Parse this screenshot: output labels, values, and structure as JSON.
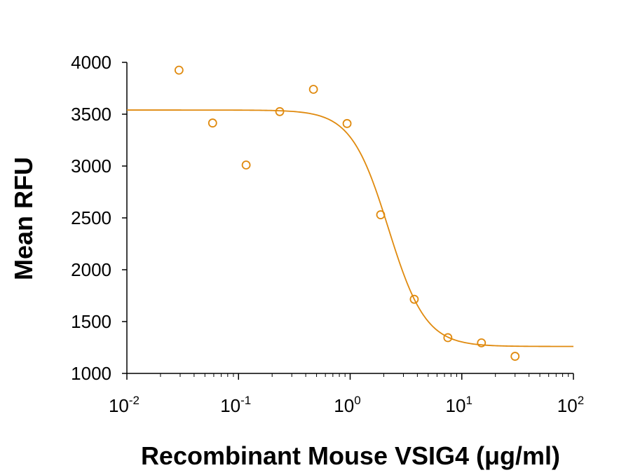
{
  "chart_data": {
    "type": "scatter",
    "xlabel": "Recombinant Mouse VSIG4 (μg/ml)",
    "ylabel": "Mean RFU",
    "xscale": "log",
    "xlim": [
      0.01,
      100
    ],
    "ylim": [
      1000,
      4000
    ],
    "yticks": [
      "1000",
      "1500",
      "2000",
      "2500",
      "3000",
      "3500",
      "4000"
    ],
    "xticks": [
      {
        "base": "10",
        "exp": "-2",
        "value": 0.01
      },
      {
        "base": "10",
        "exp": "-1",
        "value": 0.1
      },
      {
        "base": "10",
        "exp": "0",
        "value": 1
      },
      {
        "base": "10",
        "exp": "1",
        "value": 10
      },
      {
        "base": "10",
        "exp": "2",
        "value": 100
      }
    ],
    "color": "#E08A0E",
    "grid": false,
    "legend": "none",
    "points": [
      {
        "x": 0.0293,
        "y": 3925
      },
      {
        "x": 0.0586,
        "y": 3415
      },
      {
        "x": 0.117,
        "y": 3010
      },
      {
        "x": 0.234,
        "y": 3525
      },
      {
        "x": 0.469,
        "y": 3740
      },
      {
        "x": 0.938,
        "y": 3410
      },
      {
        "x": 1.875,
        "y": 2530
      },
      {
        "x": 3.75,
        "y": 1715
      },
      {
        "x": 7.5,
        "y": 1345
      },
      {
        "x": 15,
        "y": 1295
      },
      {
        "x": 30,
        "y": 1165
      }
    ],
    "fit_curve": {
      "model": "4PL",
      "top": 3540,
      "bottom": 1260,
      "ec50": 2.2,
      "hill": 2.6
    }
  }
}
